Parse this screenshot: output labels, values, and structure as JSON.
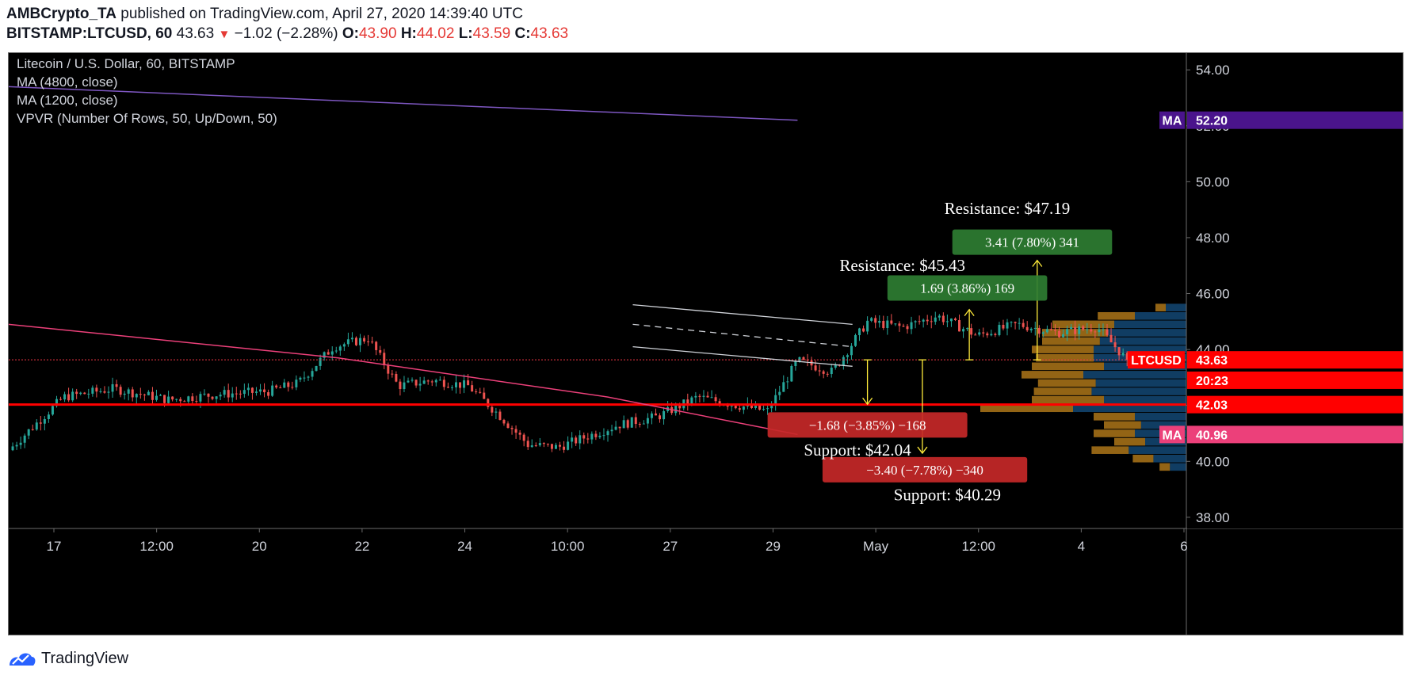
{
  "header": {
    "author": "AMBCrypto_TA",
    "published_text": "published on TradingView.com, April 27, 2020 14:39:40 UTC",
    "symbol_label": "BITSTAMP:LTCUSD, 60",
    "last": "43.63",
    "change": "−1.02 (−2.28%)",
    "o_label": "O:",
    "o_value": "43.90",
    "h_label": "H:",
    "h_value": "44.02",
    "l_label": "L:",
    "l_value": "43.59",
    "c_label": "C:",
    "c_value": "43.63"
  },
  "legend": {
    "title": "Litecoin / U.S. Dollar, 60, BITSTAMP",
    "ma1": "MA (4800, close)",
    "ma2": "MA (1200, close)",
    "vpvr": "VPVR (Number Of Rows, 50, Up/Down, 50)"
  },
  "chart_data": {
    "type": "line",
    "title": "Litecoin / U.S. Dollar, 60, BITSTAMP",
    "ylim": [
      37.6,
      54.6
    ],
    "y_ticks": [
      "54.00",
      "52.00",
      "50.00",
      "48.00",
      "46.00",
      "44.00",
      "42.00",
      "40.00",
      "38.00"
    ],
    "y_tick_values": [
      54,
      52,
      50,
      48,
      46,
      44,
      42,
      40,
      38
    ],
    "x_tick_labels": [
      "17",
      "12:00",
      "20",
      "22",
      "24",
      "10:00",
      "27",
      "29",
      "May",
      "12:00",
      "4",
      "6"
    ],
    "grid": false,
    "price_series": {
      "name": "LTCUSD",
      "x": [
        0.0,
        0.55,
        1.05,
        1.6,
        2.1,
        2.6,
        2.9,
        3.25,
        3.6,
        3.9,
        4.25,
        4.6,
        4.9,
        5.2,
        5.5,
        5.8,
        6.1,
        6.5,
        6.9,
        7.3,
        7.6,
        7.9,
        8.25,
        8.6,
        8.95,
        9.3,
        9.7,
        10.1,
        10.5,
        10.9,
        11.2
      ],
      "values": [
        40.4,
        42.3,
        42.6,
        42.2,
        42.4,
        42.5,
        42.8,
        44.1,
        44.4,
        42.7,
        42.9,
        42.7,
        41.7,
        40.6,
        40.5,
        40.9,
        41.3,
        41.6,
        42.3,
        42.0,
        41.8,
        43.6,
        43.2,
        45.0,
        44.8,
        45.2,
        44.5,
        44.9,
        44.6,
        44.8,
        43.63
      ]
    },
    "series": [
      {
        "name": "MA (4800, close)",
        "x": [
          0.0,
          7.9
        ],
        "values": [
          53.4,
          52.2
        ],
        "color": "#7e57c2"
      },
      {
        "name": "MA (1200, close)",
        "x": [
          0.0,
          3.3,
          6.0,
          7.9
        ],
        "values": [
          44.9,
          43.7,
          42.3,
          40.96
        ],
        "color": "#ec407a"
      }
    ],
    "horizontal_levels": [
      {
        "value": 43.63,
        "label": "LTCUSD",
        "style": "dotted",
        "color": "#f23645"
      },
      {
        "value": 42.03,
        "style": "solid",
        "color": "#ff0000"
      }
    ],
    "channel": {
      "upper": {
        "x": [
          6.25,
          8.45
        ],
        "values": [
          45.6,
          44.9
        ]
      },
      "middle": {
        "x": [
          6.25,
          8.45
        ],
        "values": [
          44.9,
          44.1
        ]
      },
      "lower": {
        "x": [
          6.25,
          8.45
        ],
        "values": [
          44.1,
          43.4
        ]
      }
    },
    "price_labels": [
      {
        "text": "MA",
        "value": "52.20",
        "y": 52.2,
        "color": "#4a148c"
      },
      {
        "text": "LTCUSD",
        "value": "43.63",
        "y": 43.63,
        "color": "#ff0000"
      },
      {
        "text": "",
        "value": "20:23",
        "y": 42.9,
        "color": "#ff0000"
      },
      {
        "text": "",
        "value": "42.03",
        "y": 42.03,
        "color": "#ff0000"
      },
      {
        "text": "MA",
        "value": "40.96",
        "y": 40.96,
        "color": "#ec407a"
      }
    ],
    "annotations": [
      {
        "id": "res2",
        "text": "Resistance: $47.19",
        "y": 49.05,
        "x": 10.0
      },
      {
        "id": "res1",
        "text": "Resistance: $45.43",
        "y": 47.0,
        "x": 8.95
      },
      {
        "id": "sup1",
        "text": "Support: $42.04",
        "y": 40.4,
        "x": 8.5
      },
      {
        "id": "sup2",
        "text": "Support: $40.29",
        "y": 38.8,
        "x": 9.4
      }
    ],
    "measure_boxes": [
      {
        "text": "3.41 (7.80%) 341",
        "y": 47.84,
        "x_from": 9.45,
        "x_to": 11.05,
        "color": "#2e7d32"
      },
      {
        "text": "1.69 (3.86%) 169",
        "y": 46.2,
        "x_from": 8.8,
        "x_to": 10.4,
        "color": "#2e7d32"
      },
      {
        "text": "−1.68 (−3.85%) −168",
        "y": 41.3,
        "x_from": 7.6,
        "x_to": 9.6,
        "color": "#c62828"
      },
      {
        "text": "−3.40 (−7.78%) −340",
        "y": 39.7,
        "x_from": 8.15,
        "x_to": 10.2,
        "color": "#c62828"
      }
    ],
    "arrows": [
      {
        "x": 10.3,
        "from": 43.63,
        "to": 47.19,
        "color": "#ffeb3b"
      },
      {
        "x": 9.62,
        "from": 43.63,
        "to": 45.43,
        "color": "#ffeb3b"
      },
      {
        "x": 8.6,
        "from": 43.63,
        "to": 42.04,
        "color": "#ffeb3b"
      },
      {
        "x": 9.15,
        "from": 43.63,
        "to": 40.29,
        "color": "#ffeb3b"
      }
    ],
    "volume_profile": {
      "rows": [
        {
          "y": 45.5,
          "up": 0.1,
          "down": 0.05
        },
        {
          "y": 45.2,
          "up": 0.25,
          "down": 0.18
        },
        {
          "y": 44.9,
          "up": 0.35,
          "down": 0.3
        },
        {
          "y": 44.6,
          "up": 0.38,
          "down": 0.32
        },
        {
          "y": 44.3,
          "up": 0.42,
          "down": 0.28
        },
        {
          "y": 44.0,
          "up": 0.45,
          "down": 0.3
        },
        {
          "y": 43.7,
          "up": 0.45,
          "down": 0.28
        },
        {
          "y": 43.4,
          "up": 0.4,
          "down": 0.35
        },
        {
          "y": 43.1,
          "up": 0.5,
          "down": 0.3
        },
        {
          "y": 42.8,
          "up": 0.44,
          "down": 0.28
        },
        {
          "y": 42.5,
          "up": 0.46,
          "down": 0.28
        },
        {
          "y": 42.2,
          "up": 0.4,
          "down": 0.35
        },
        {
          "y": 41.9,
          "up": 0.55,
          "down": 0.45
        },
        {
          "y": 41.6,
          "up": 0.25,
          "down": 0.2
        },
        {
          "y": 41.3,
          "up": 0.22,
          "down": 0.18
        },
        {
          "y": 41.0,
          "up": 0.25,
          "down": 0.2
        },
        {
          "y": 40.7,
          "up": 0.2,
          "down": 0.15
        },
        {
          "y": 40.4,
          "up": 0.28,
          "down": 0.18
        },
        {
          "y": 40.1,
          "up": 0.16,
          "down": 0.1
        },
        {
          "y": 39.8,
          "up": 0.08,
          "down": 0.05
        }
      ],
      "up_color": "#1e6fb5",
      "down_color": "#f5a623"
    }
  },
  "footer": {
    "brand": "TradingView"
  },
  "colors": {
    "background": "#000000",
    "up_candle": "#26a69a",
    "down_candle": "#ef5350",
    "axis_text": "#d1d4dc"
  }
}
